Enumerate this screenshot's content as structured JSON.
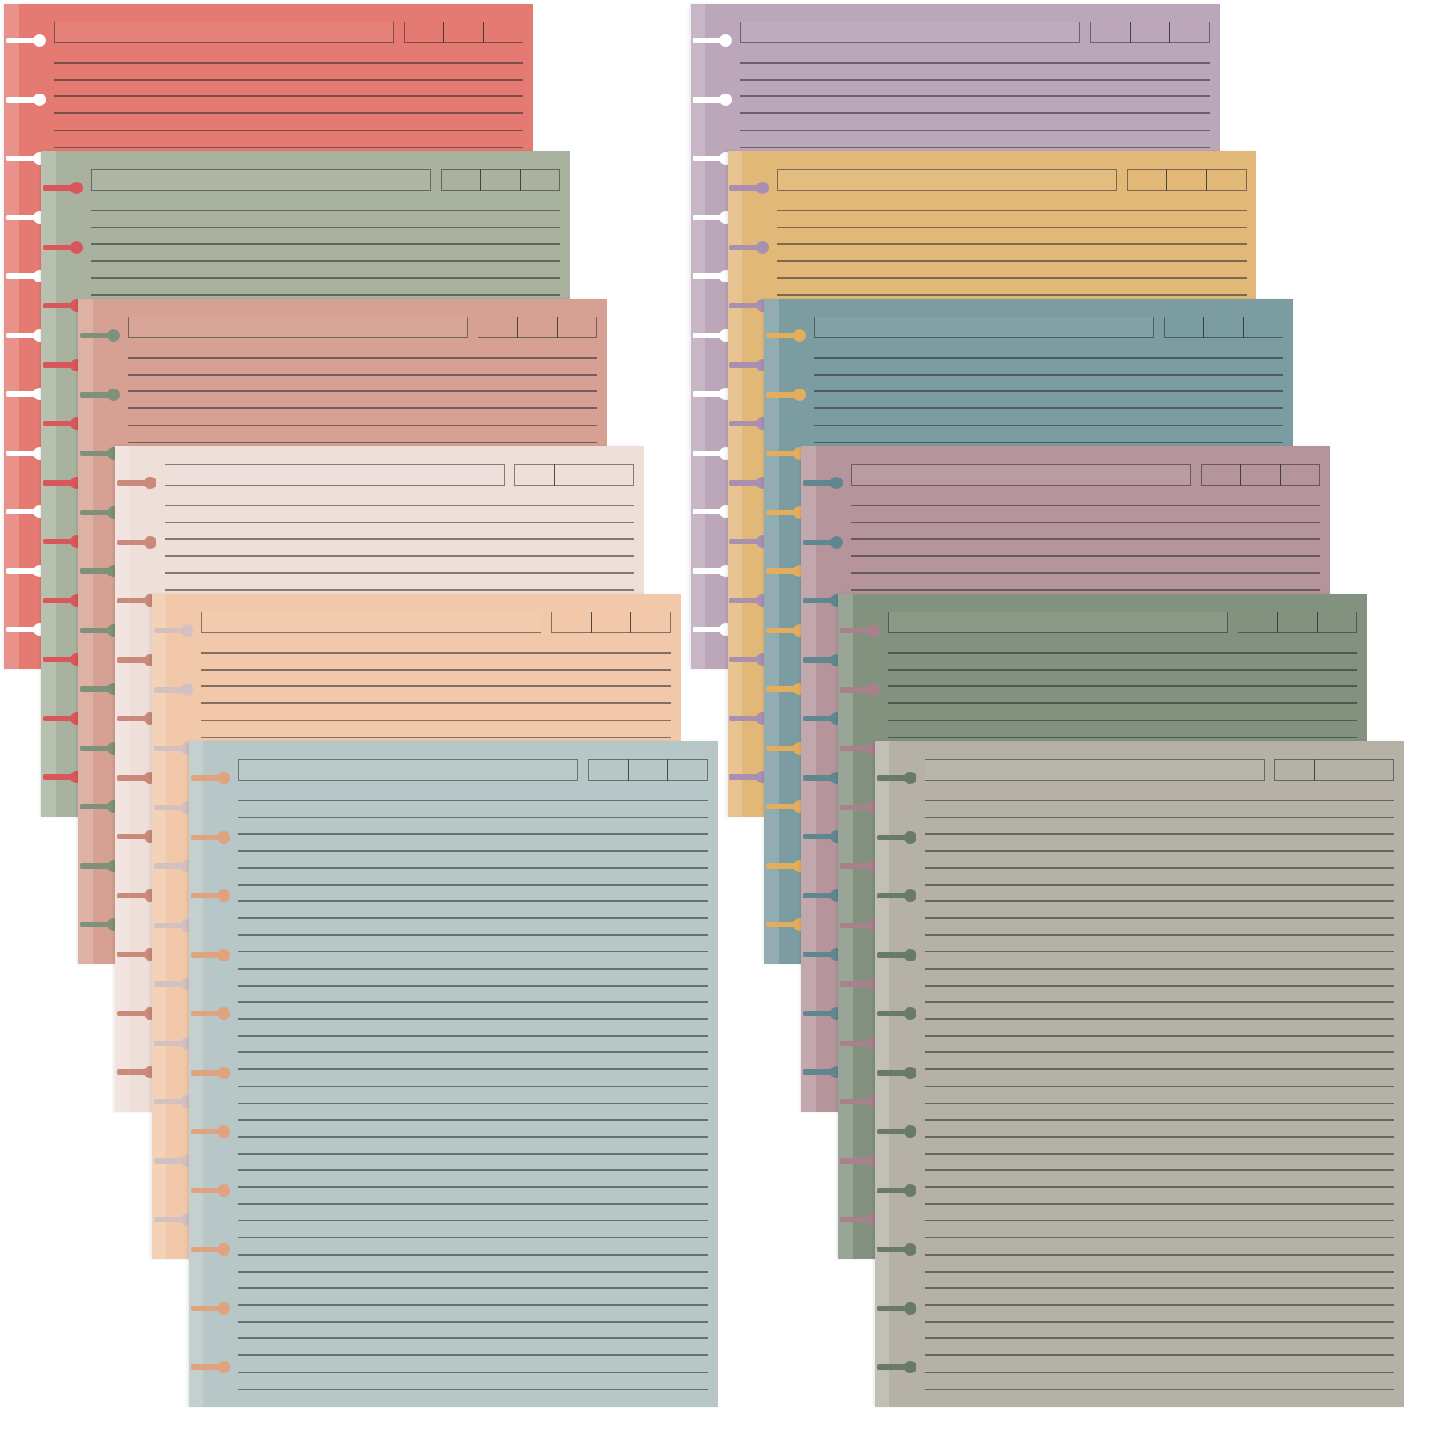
{
  "stacks": [
    {
      "name": "left-stack",
      "sheets": [
        {
          "id": "red",
          "color": "#e57a72",
          "ring": "#ffffff"
        },
        {
          "id": "sage",
          "color": "#a9b29e",
          "ring": "#d9575a"
        },
        {
          "id": "dusty-rose",
          "color": "#d6a192",
          "ring": "#7f9178"
        },
        {
          "id": "blush",
          "color": "#efdfd9",
          "ring": "#c98a7c"
        },
        {
          "id": "peach",
          "color": "#f1c8a9",
          "ring": "#d3c1c2"
        },
        {
          "id": "light-blue",
          "color": "#b7c6c6",
          "ring": "#e0a27f"
        }
      ]
    },
    {
      "name": "right-stack",
      "sheets": [
        {
          "id": "lavender",
          "color": "#bca6ba",
          "ring": "#ffffff"
        },
        {
          "id": "mustard",
          "color": "#e2b879",
          "ring": "#a98fb0"
        },
        {
          "id": "teal",
          "color": "#7b9ca0",
          "ring": "#e3ad5c"
        },
        {
          "id": "mauve",
          "color": "#b5959b",
          "ring": "#60868f"
        },
        {
          "id": "olive-gray",
          "color": "#83927f",
          "ring": "#a8818b"
        },
        {
          "id": "taupe",
          "color": "#b5b1a7",
          "ring": "#6a7a69"
        }
      ]
    }
  ]
}
